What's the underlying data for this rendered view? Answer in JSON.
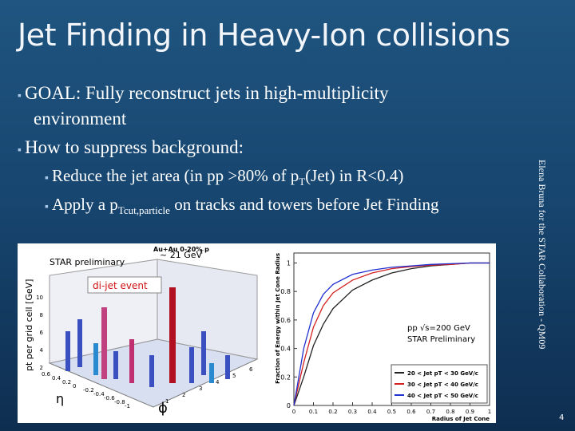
{
  "title": "Jet Finding in Heavy-Ion collisions",
  "bullets": [
    {
      "lines": [
        "GOAL: Fully reconstruct jets in high-multiplicity",
        "environment"
      ]
    },
    {
      "lines": [
        "How to suppress background:"
      ]
    }
  ],
  "sub_bullets": [
    {
      "parts": [
        "Reduce the jet area (in pp >80% of p",
        "T",
        "(Jet) in R<0.4)"
      ]
    },
    {
      "parts": [
        "Apply a p",
        "Tcut,particle",
        " on tracks and towers before Jet Finding"
      ]
    }
  ],
  "side_note": "Elena Bruna for the STAR Collaboration - QM09",
  "page_number": "4",
  "lego_plot": {
    "header": "Au+Au 0-20% p",
    "header_sub": "T",
    "header_end": "~ 21 GeV",
    "preliminary": "STAR preliminary",
    "tag": "di-jet event",
    "z_label": "pt per grid cell [GeV]",
    "eta_label": "η",
    "phi_label": "ϕ",
    "z_ticks": [
      2,
      4,
      6,
      8,
      10
    ],
    "phi_ticks": [
      1,
      2,
      3,
      4,
      5,
      6
    ],
    "eta_ticks": [
      "0.6",
      "0.4",
      "0.2",
      "0",
      "-0.2",
      "-0.4",
      "-0.6",
      "-0.8",
      "-1"
    ]
  },
  "chart_data": {
    "type": "line",
    "annotations": [
      "pp √s=200 GeV",
      "STAR Preliminary"
    ],
    "x_label": "Radius of Jet Cone",
    "y_label": "Fraction of Energy within Jet Cone Radius",
    "x": [
      0,
      0.05,
      0.1,
      0.15,
      0.2,
      0.3,
      0.4,
      0.5,
      0.6,
      0.7,
      0.8,
      0.9,
      1
    ],
    "series": [
      {
        "name": "20 < Jet pT < 30 GeV/c",
        "color": "#222222",
        "values": [
          0,
          0.2,
          0.42,
          0.57,
          0.68,
          0.81,
          0.88,
          0.93,
          0.96,
          0.98,
          0.99,
          1,
          1
        ]
      },
      {
        "name": "30 < Jet pT < 40 GeV/c",
        "color": "#d42020",
        "values": [
          0,
          0.3,
          0.55,
          0.7,
          0.79,
          0.88,
          0.93,
          0.96,
          0.975,
          0.985,
          0.99,
          1,
          1
        ]
      },
      {
        "name": "40 < Jet pT < 50 GeV/c",
        "color": "#2030d0",
        "values": [
          0,
          0.4,
          0.65,
          0.78,
          0.85,
          0.92,
          0.95,
          0.97,
          0.98,
          0.99,
          0.995,
          1,
          1
        ]
      }
    ],
    "xlim": [
      0,
      1
    ],
    "ylim": [
      0,
      1.07
    ],
    "xticks": [
      0,
      0.1,
      0.2,
      0.3,
      0.4,
      0.5,
      0.6,
      0.7,
      0.8,
      0.9,
      1
    ],
    "yticks": [
      0,
      0.2,
      0.4,
      0.6,
      0.8,
      1
    ],
    "legend": "lower right"
  }
}
